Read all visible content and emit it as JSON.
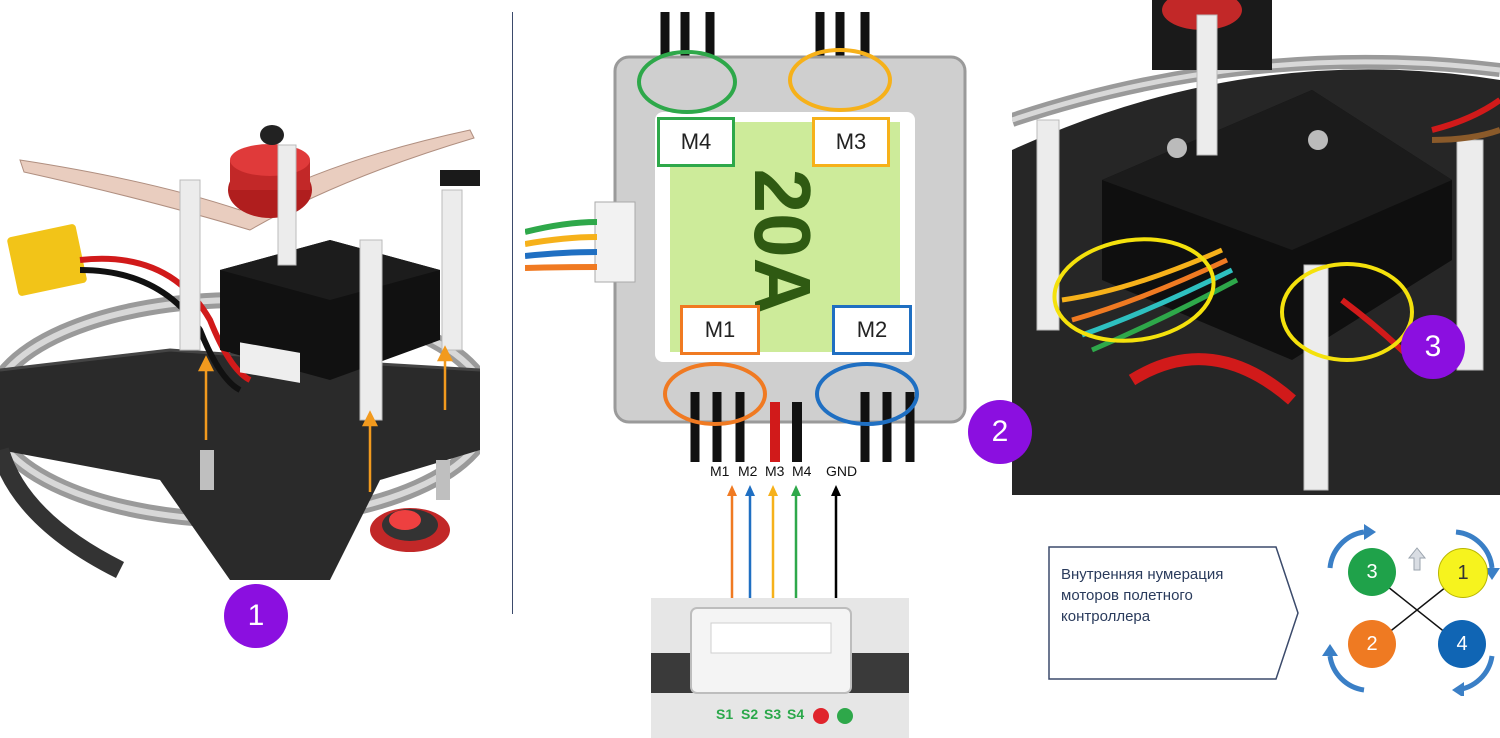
{
  "step_badges": [
    "1",
    "2",
    "3"
  ],
  "esc_labels": {
    "m1": "M1",
    "m2": "M2",
    "m3": "M3",
    "m4": "M4"
  },
  "wire_legend": [
    {
      "label": "M1",
      "color": "#f07a22"
    },
    {
      "label": "M2",
      "color": "#1f6fc2"
    },
    {
      "label": "M3",
      "color": "#f6b11a"
    },
    {
      "label": "M4",
      "color": "#2ea84a"
    },
    {
      "label": "GND",
      "color": "#000000"
    }
  ],
  "connector_pins": [
    "S1",
    "S2",
    "S3",
    "S4"
  ],
  "callout_text": "Внутренняя нумерация моторов полетного контроллера",
  "motors": [
    {
      "label": "3",
      "color": "#1fa24a",
      "text_color": "#ffffff"
    },
    {
      "label": "1",
      "color": "#f6f31e",
      "text_color": "#333333"
    },
    {
      "label": "2",
      "color": "#ef7a22",
      "text_color": "#ffffff"
    },
    {
      "label": "4",
      "color": "#1065b4",
      "text_color": "#ffffff"
    }
  ],
  "colors": {
    "badge": "#8b0fe0",
    "arrow_guide": "#f29a1e",
    "highlight": "#f4e10c",
    "rotation_arrow": "#3a7fc6"
  }
}
